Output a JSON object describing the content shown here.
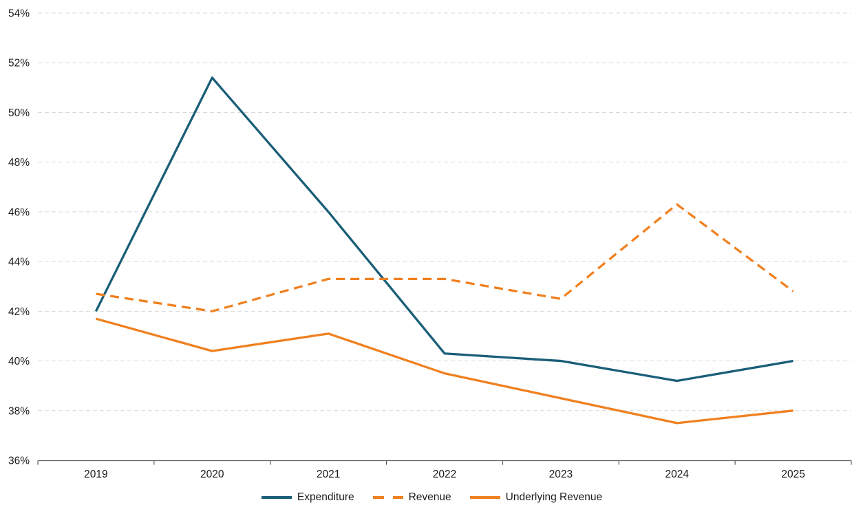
{
  "chart_data": {
    "type": "line",
    "x": [
      "2019",
      "2020",
      "2021",
      "2022",
      "2023",
      "2024",
      "2025"
    ],
    "series": [
      {
        "name": "Expenditure",
        "color": "#1A5E78",
        "style": "solid",
        "values": [
          42.0,
          51.4,
          46.0,
          40.3,
          40.0,
          39.2,
          40.0
        ]
      },
      {
        "name": "Revenue",
        "color": "#F08020",
        "style": "dashed",
        "values": [
          42.7,
          42.0,
          43.3,
          43.3,
          42.5,
          46.3,
          42.8
        ]
      },
      {
        "name": "Underlying Revenue",
        "color": "#F08020",
        "style": "solid",
        "values": [
          41.7,
          40.4,
          41.1,
          39.5,
          38.5,
          37.5,
          38.0
        ]
      }
    ],
    "ylim": [
      36,
      54
    ],
    "ytick_step": 2,
    "ytick_labels": [
      "36%",
      "38%",
      "40%",
      "42%",
      "44%",
      "46%",
      "48%",
      "50%",
      "52%",
      "54%"
    ],
    "grid": "horizontal-dashed",
    "legend_position": "bottom-center",
    "colors": {
      "gridline": "#D9D9D9",
      "axis": "#595959",
      "text": "#1A1A1A",
      "background": "#FFFFFF"
    }
  }
}
